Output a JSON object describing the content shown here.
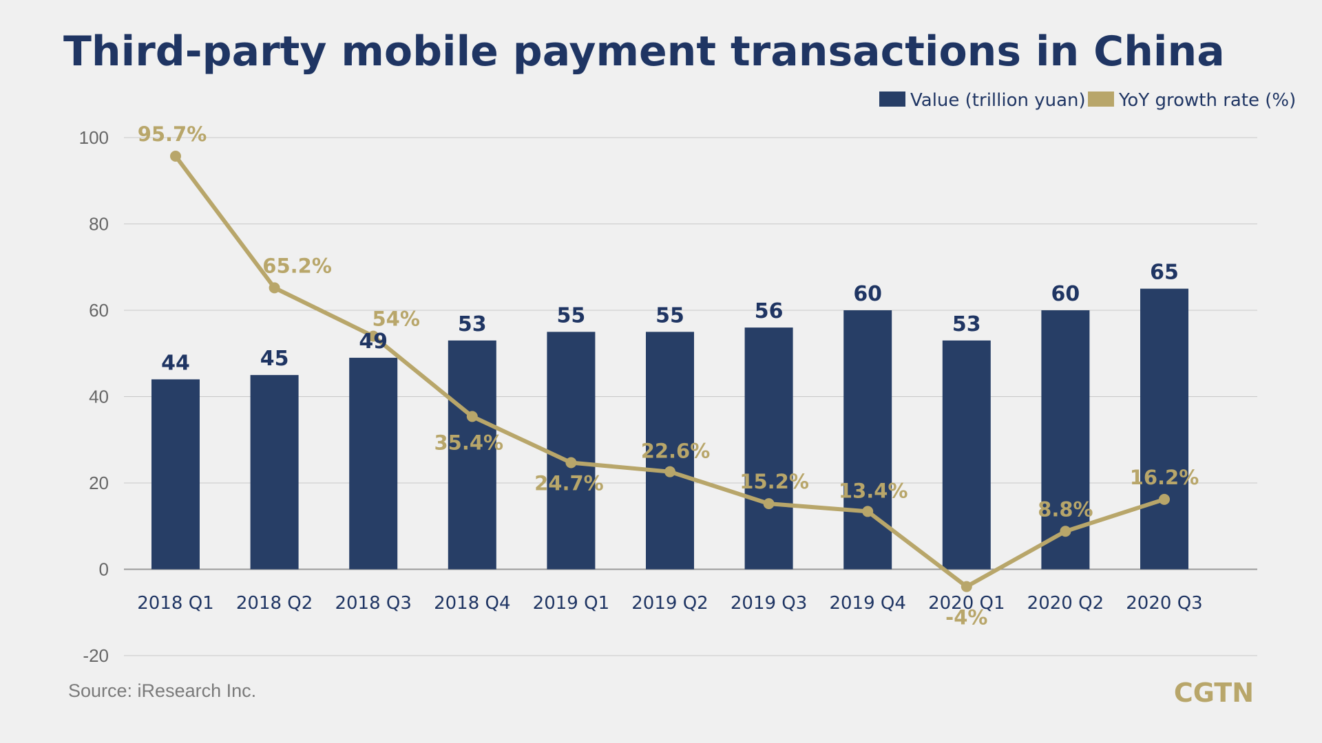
{
  "chart_data": {
    "type": "bar",
    "title": "Third-party mobile payment transactions in China",
    "categories": [
      "2018 Q1",
      "2018 Q2",
      "2018 Q3",
      "2018 Q4",
      "2019 Q1",
      "2019 Q2",
      "2019 Q3",
      "2019 Q4",
      "2020 Q1",
      "2020 Q2",
      "2020 Q3"
    ],
    "series": [
      {
        "name": "Value (trillion yuan)",
        "type": "bar",
        "color": "#273e66",
        "values": [
          44,
          45,
          49,
          53,
          55,
          55,
          56,
          60,
          53,
          60,
          65
        ],
        "labels": [
          "44",
          "45",
          "49",
          "53",
          "55",
          "55",
          "56",
          "60",
          "53",
          "60",
          "65"
        ]
      },
      {
        "name": "YoY growth rate (%)",
        "type": "line",
        "color": "#b8a66a",
        "values": [
          95.7,
          65.2,
          54,
          35.4,
          24.7,
          22.6,
          15.2,
          13.4,
          -4,
          8.8,
          16.2
        ],
        "labels": [
          "95.7%",
          "65.2%",
          "54%",
          "35.4%",
          "24.7%",
          "22.6%",
          "15.2%",
          "13.4%",
          "-4%",
          "8.8%",
          "16.2%"
        ]
      }
    ],
    "ylim": [
      -20,
      100
    ],
    "yticks": [
      "-20",
      "0",
      "20",
      "40",
      "60",
      "80",
      "100"
    ],
    "ytick_values": [
      -20,
      0,
      20,
      40,
      60,
      80,
      100
    ],
    "grid": true,
    "legend_position": "top-right",
    "xlabel": "",
    "ylabel": ""
  },
  "source": "Source: iResearch Inc.",
  "logo": "CGTN",
  "colors": {
    "background": "#f0f0f0",
    "title": "#1f3563",
    "bar": "#273e66",
    "line": "#b8a66a",
    "grid": "#c8c8c8",
    "axis": "#9a9a9a"
  }
}
